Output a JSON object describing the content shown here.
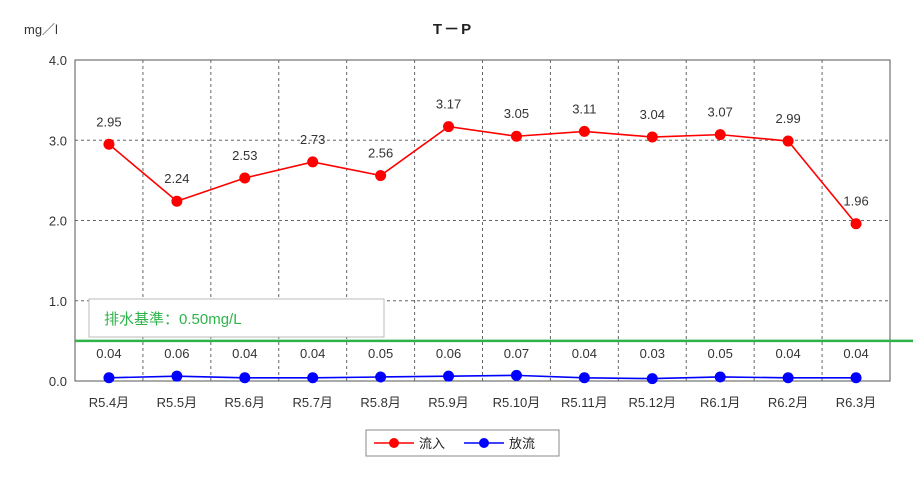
{
  "chart_data": {
    "type": "line",
    "title": "T－P",
    "ylabel": "mg／l",
    "ylim": [
      0,
      4
    ],
    "yticks": [
      "0.0",
      "1.0",
      "2.0",
      "3.0",
      "4.0"
    ],
    "ytick_values": [
      0,
      1,
      2,
      3,
      4
    ],
    "categories": [
      "R5.4月",
      "R5.5月",
      "R5.6月",
      "R5.7月",
      "R5.8月",
      "R5.9月",
      "R5.10月",
      "R5.11月",
      "R5.12月",
      "R6.1月",
      "R6.2月",
      "R6.3月"
    ],
    "grid": true,
    "legend_position": "bottom",
    "series": [
      {
        "name": "流入",
        "color": "#ff0000",
        "values": [
          2.95,
          2.24,
          2.53,
          2.73,
          2.56,
          3.17,
          3.05,
          3.11,
          3.04,
          3.07,
          2.99,
          1.96
        ],
        "labels": [
          "2.95",
          "2.24",
          "2.53",
          "2.73",
          "2.56",
          "3.17",
          "3.05",
          "3.11",
          "3.04",
          "3.07",
          "2.99",
          "1.96"
        ]
      },
      {
        "name": "放流",
        "color": "#0000ff",
        "values": [
          0.04,
          0.06,
          0.04,
          0.04,
          0.05,
          0.06,
          0.07,
          0.04,
          0.03,
          0.05,
          0.04,
          0.04
        ],
        "labels": [
          "0.04",
          "0.06",
          "0.04",
          "0.04",
          "0.05",
          "0.06",
          "0.07",
          "0.04",
          "0.03",
          "0.05",
          "0.04",
          "0.04"
        ]
      }
    ],
    "reference_line": {
      "value": 0.5,
      "label": "排水基準：0.50mg/L",
      "color": "#2db34a"
    }
  }
}
